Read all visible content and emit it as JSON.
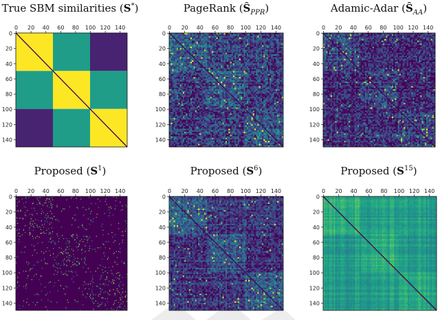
{
  "chart_data": [
    {
      "type": "heatmap",
      "title": "True SBM similarities (",
      "title_math": "S*",
      "matrix_size": 150,
      "pattern": "sbm-blocks",
      "blocks": [
        [
          0,
          50
        ],
        [
          50,
          100
        ],
        [
          100,
          150
        ]
      ],
      "block_values": [
        [
          1.0,
          0.55,
          0.1
        ],
        [
          0.55,
          1.0,
          0.55
        ],
        [
          0.1,
          0.55,
          1.0
        ]
      ],
      "diagonal": 0.0,
      "xticks": [
        "0",
        "20",
        "40",
        "60",
        "80",
        "100",
        "120",
        "140"
      ],
      "yticks": [
        "0",
        "20",
        "40",
        "60",
        "80",
        "100",
        "120",
        "140"
      ],
      "colormap": "viridis"
    },
    {
      "type": "heatmap",
      "title": "PageRank (",
      "title_math": "Ŝ_PPR",
      "matrix_size": 150,
      "pattern": "noisy-blocks",
      "in_block_mean": 0.28,
      "out_block_mean": 0.18,
      "noise_spread": 0.45,
      "diagonal": 0.0,
      "xticks": [
        "0",
        "20",
        "40",
        "60",
        "80",
        "100",
        "120",
        "140"
      ],
      "yticks": [
        "0",
        "20",
        "40",
        "60",
        "80",
        "100",
        "120",
        "140"
      ],
      "colormap": "viridis"
    },
    {
      "type": "heatmap",
      "title": "Adamic-Adar (",
      "title_math": "Ŝ_AA",
      "matrix_size": 150,
      "pattern": "noisy-blocks",
      "in_block_mean": 0.2,
      "out_block_mean": 0.12,
      "noise_spread": 0.4,
      "diagonal": 0.0,
      "xticks": [
        "0",
        "20",
        "40",
        "60",
        "80",
        "100",
        "120",
        "140"
      ],
      "yticks": [
        "0",
        "20",
        "40",
        "60",
        "80",
        "100",
        "120",
        "140"
      ],
      "colormap": "viridis"
    },
    {
      "type": "heatmap",
      "title": "Proposed (",
      "title_math": "S^1",
      "matrix_size": 150,
      "pattern": "sparse-blocks",
      "in_block_density": 0.06,
      "out_block_density": 0.02,
      "diagonal": 0.0,
      "xticks": [
        "0",
        "20",
        "40",
        "60",
        "80",
        "100",
        "120",
        "140"
      ],
      "yticks": [
        "0",
        "20",
        "40",
        "60",
        "80",
        "100",
        "120",
        "140"
      ],
      "colormap": "viridis"
    },
    {
      "type": "heatmap",
      "title": "Proposed (",
      "title_math": "S^6",
      "matrix_size": 150,
      "pattern": "noisy-blocks",
      "in_block_mean": 0.3,
      "out_block_mean": 0.16,
      "noise_spread": 0.35,
      "diagonal": 0.0,
      "xticks": [
        "0",
        "20",
        "40",
        "60",
        "80",
        "100",
        "120",
        "140"
      ],
      "yticks": [
        "0",
        "20",
        "40",
        "60",
        "80",
        "100",
        "120",
        "140"
      ],
      "colormap": "viridis"
    },
    {
      "type": "heatmap",
      "title": "Proposed (",
      "title_math": "S^15",
      "matrix_size": 150,
      "pattern": "smooth-stripes",
      "in_block_mean": 0.62,
      "out_block_mean": 0.55,
      "noise_spread": 0.15,
      "diagonal": 0.0,
      "xticks": [
        "0",
        "20",
        "40",
        "60",
        "80",
        "100",
        "120",
        "140"
      ],
      "yticks": [
        "0",
        "20",
        "40",
        "60",
        "80",
        "100",
        "120",
        "140"
      ],
      "colormap": "viridis"
    }
  ]
}
